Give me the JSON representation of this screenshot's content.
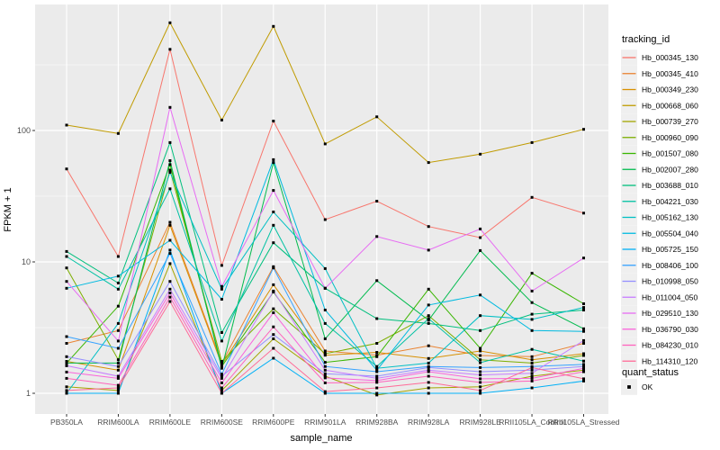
{
  "chart_data": {
    "type": "line",
    "title": "",
    "xlabel": "sample_name",
    "ylabel": "FPKM + 1",
    "y_scale": "log10",
    "y_ticks": [
      1,
      10,
      100
    ],
    "y_minor_ticks": [
      3.1623,
      31.623,
      316.23
    ],
    "grid": true,
    "legend_position": "right",
    "x_categories": [
      "PB350LA",
      "RRIM600LA",
      "RRIM600LE",
      "RRIM600SE",
      "RRIM600PE",
      "RRIM901LA",
      "RRIM928BA",
      "RRIM928LA",
      "RRIM928LE",
      "RRII105LA_Control",
      "RRII105LA_Stressed"
    ],
    "legend": {
      "color_title": "tracking_id",
      "shape_title": "quant_status",
      "shape_items": [
        {
          "label": "OK",
          "marker": "black-square"
        }
      ]
    },
    "point_marker": {
      "shape": "square",
      "color": "#000000",
      "size": 3
    },
    "colors": {
      "panel_bg": "#EBEBEB",
      "grid": "#FFFFFF",
      "tick_text": "#4D4D4D",
      "title_text": "#000000",
      "legend_key_bg": "#EFEFEF"
    },
    "series": [
      {
        "tracking_id": "Hb_000345_130",
        "color": "#F8766D",
        "values": [
          51,
          11,
          415,
          9.4,
          118,
          21,
          29,
          18.6,
          15.3,
          31,
          23.5
        ]
      },
      {
        "tracking_id": "Hb_000345_410",
        "color": "#EA8331",
        "values": [
          2.4,
          3.0,
          20,
          1.7,
          9.2,
          2.1,
          1.95,
          2.3,
          1.94,
          1.9,
          2.4
        ]
      },
      {
        "tracking_id": "Hb_000349_230",
        "color": "#D89000",
        "values": [
          1.75,
          1.5,
          19,
          1.65,
          6.7,
          1.95,
          2.05,
          1.84,
          2.1,
          1.8,
          2.0
        ]
      },
      {
        "tracking_id": "Hb_000668_060",
        "color": "#C09B00",
        "values": [
          110,
          95,
          660,
          120,
          620,
          79,
          127,
          57,
          66,
          81,
          102
        ]
      },
      {
        "tracking_id": "Hb_000739_270",
        "color": "#A3A500",
        "values": [
          1.12,
          1.05,
          9.7,
          1.05,
          2.6,
          1.35,
          0.97,
          1.1,
          1.12,
          1.35,
          1.5
        ]
      },
      {
        "tracking_id": "Hb_000960_090",
        "color": "#7CAE00",
        "values": [
          9,
          1.8,
          50,
          1.75,
          4.4,
          2.0,
          2.4,
          3.9,
          1.8,
          1.7,
          1.94
        ]
      },
      {
        "tracking_id": "Hb_001507_080",
        "color": "#39B600",
        "values": [
          1.7,
          4.6,
          55,
          1.6,
          5.9,
          1.72,
          1.9,
          6.2,
          2.2,
          8.2,
          4.8
        ]
      },
      {
        "tracking_id": "Hb_002007_280",
        "color": "#00BB4E",
        "values": [
          1.7,
          1.7,
          59,
          1.55,
          57,
          2.6,
          7.2,
          3.6,
          12.2,
          4.9,
          3.1
        ]
      },
      {
        "tracking_id": "Hb_003688_010",
        "color": "#00BF7D",
        "values": [
          12,
          6.9,
          81,
          2.9,
          14,
          6.3,
          3.7,
          3.4,
          3.0,
          4.0,
          4.3
        ]
      },
      {
        "tracking_id": "Hb_004221_030",
        "color": "#00C1A3",
        "values": [
          11,
          6.2,
          36,
          2.5,
          19,
          3.4,
          1.6,
          3.7,
          1.71,
          2.16,
          1.76
        ]
      },
      {
        "tracking_id": "Hb_005162_130",
        "color": "#00BFC4",
        "values": [
          1.0,
          3.4,
          48,
          6.2,
          24,
          8.9,
          1.55,
          1.7,
          3.9,
          3.65,
          4.5
        ]
      },
      {
        "tracking_id": "Hb_005504_040",
        "color": "#00BAE0",
        "values": [
          6.3,
          7.8,
          14.6,
          5.2,
          60,
          4.3,
          1.5,
          4.7,
          5.6,
          3.0,
          2.96
        ]
      },
      {
        "tracking_id": "Hb_005725_150",
        "color": "#00B0F6",
        "values": [
          1.0,
          1.0,
          12.3,
          1.0,
          1.85,
          1.0,
          1.0,
          1.0,
          1.0,
          1.1,
          1.24
        ]
      },
      {
        "tracking_id": "Hb_008406_100",
        "color": "#35A2FF",
        "values": [
          2.7,
          2.2,
          11.6,
          1.4,
          9.0,
          1.6,
          1.46,
          1.6,
          1.57,
          1.6,
          1.66
        ]
      },
      {
        "tracking_id": "Hb_010998_050",
        "color": "#9590FF",
        "values": [
          1.9,
          1.6,
          7.1,
          1.35,
          2.8,
          1.41,
          1.35,
          1.57,
          1.46,
          1.5,
          1.6
        ]
      },
      {
        "tracking_id": "Hb_011004_050",
        "color": "#C77CFF",
        "values": [
          1.62,
          1.35,
          6.2,
          1.3,
          6.0,
          1.5,
          1.3,
          1.5,
          1.38,
          1.42,
          2.52
        ]
      },
      {
        "tracking_id": "Hb_029510_130",
        "color": "#E76BF3",
        "values": [
          7.1,
          2.5,
          150,
          6.5,
          35,
          6.3,
          15.6,
          12.3,
          17.8,
          6.0,
          10.7
        ]
      },
      {
        "tracking_id": "Hb_036790_030",
        "color": "#FA62DB",
        "values": [
          1.45,
          1.3,
          5.8,
          1.2,
          4.1,
          1.31,
          1.25,
          1.46,
          1.29,
          1.3,
          1.55
        ]
      },
      {
        "tracking_id": "Hb_084230_010",
        "color": "#FF62BC",
        "values": [
          1.3,
          1.15,
          5.4,
          1.1,
          3.2,
          1.2,
          1.21,
          1.35,
          1.21,
          1.24,
          1.46
        ]
      },
      {
        "tracking_id": "Hb_114310_120",
        "color": "#FF6A98",
        "values": [
          1.05,
          1.1,
          5.0,
          1.0,
          2.2,
          1.03,
          1.1,
          1.21,
          1.05,
          1.57,
          1.29
        ]
      }
    ]
  }
}
